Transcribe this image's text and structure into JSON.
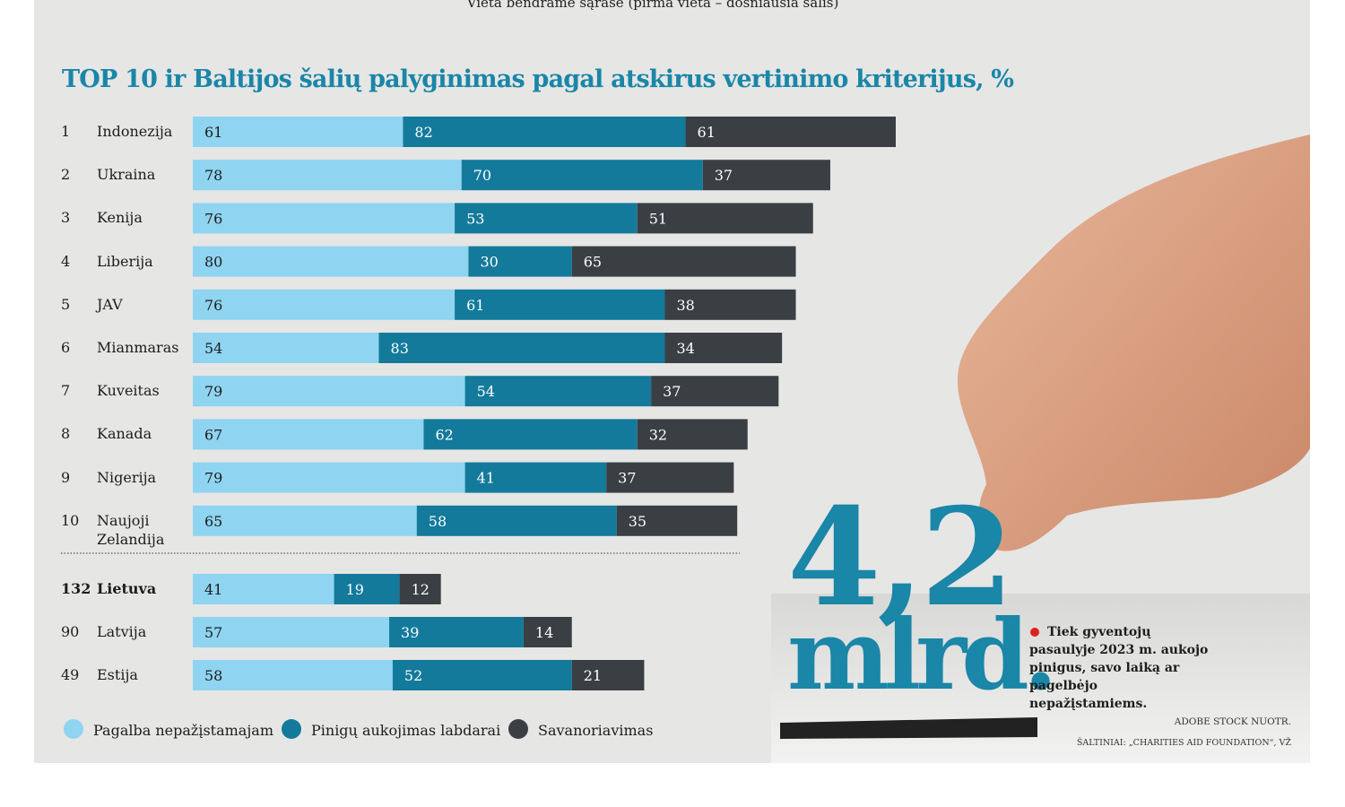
{
  "chart_data": {
    "type": "bar",
    "orientation": "horizontal",
    "stacked": true,
    "subtitle": "Vieta bendrame sąraše (pirma vieta – dosniausia šalis)",
    "title": "TOP 10 ir Baltijos šalių palyginimas pagal atskirus vertinimo kriterijus, %",
    "ranks": [
      "1",
      "2",
      "3",
      "4",
      "5",
      "6",
      "7",
      "8",
      "9",
      "10",
      "132",
      "90",
      "49"
    ],
    "categories": [
      "Indonezija",
      "Ukraina",
      "Kenija",
      "Liberija",
      "JAV",
      "Mianmaras",
      "Kuveitas",
      "Kanada",
      "Nigerija",
      "Naujoji Zelandija",
      "Lietuva",
      "Latvija",
      "Estija"
    ],
    "series": [
      {
        "name": "Pagalba nepažįstamajam",
        "color": "#8fd4f0",
        "values": [
          61,
          78,
          76,
          80,
          76,
          54,
          79,
          67,
          79,
          65,
          41,
          57,
          58
        ]
      },
      {
        "name": "Pinigų aukojimas labdarai",
        "color": "#137a9c",
        "values": [
          82,
          70,
          53,
          30,
          61,
          83,
          54,
          62,
          41,
          58,
          19,
          39,
          52
        ]
      },
      {
        "name": "Savanoriavimas",
        "color": "#3a3f44",
        "values": [
          61,
          37,
          51,
          65,
          38,
          34,
          37,
          32,
          37,
          35,
          12,
          14,
          21
        ]
      }
    ],
    "legend": "bottom",
    "annotations": {
      "big_number": "4,2",
      "big_unit": "mlrd.",
      "note": "Tiek gyventojų pasaulyje 2023 m. aukojo pinigus, savo laiką ar pagelbėjo nepažįstamiems.",
      "photo_credit": "ADOBE STOCK NUOTR.",
      "source": "ŠALTINIAI: „CHARITIES AID FOUNDATION“, VŽ"
    }
  }
}
